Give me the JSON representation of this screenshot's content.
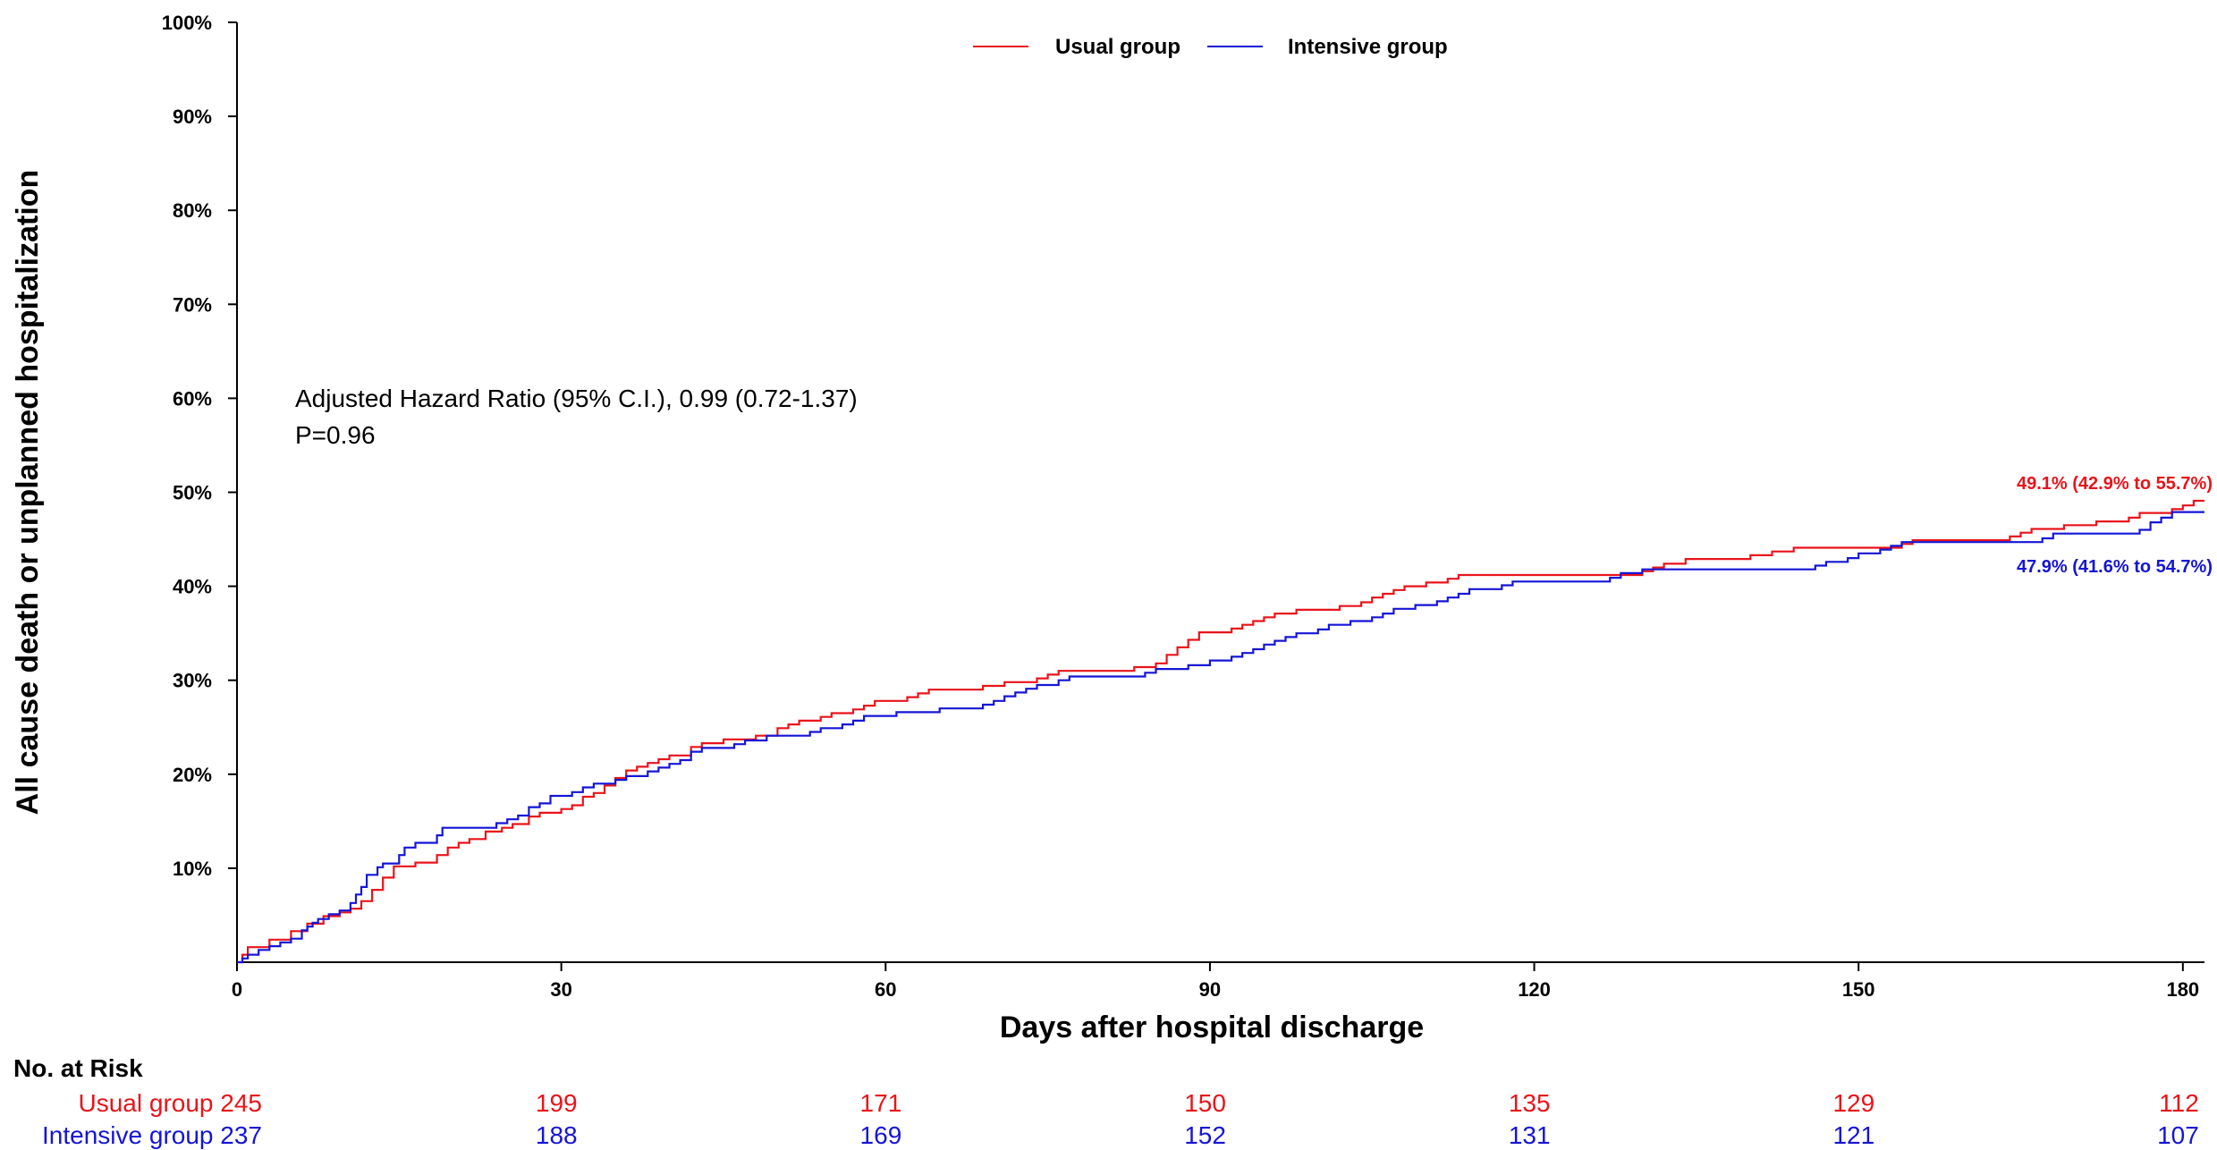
{
  "chart_data": {
    "type": "line",
    "step": true,
    "xlabel": "Days after hospital discharge",
    "ylabel": "All cause death or unplanned hospitalization",
    "xlim": [
      0,
      182
    ],
    "ylim": [
      0,
      100
    ],
    "x_ticks": [
      {
        "value": 0,
        "label": "0"
      },
      {
        "value": 30,
        "label": "30"
      },
      {
        "value": 60,
        "label": "60"
      },
      {
        "value": 90,
        "label": "90"
      },
      {
        "value": 120,
        "label": "120"
      },
      {
        "value": 150,
        "label": "150"
      },
      {
        "value": 180,
        "label": "180"
      }
    ],
    "y_ticks": [
      {
        "value": 10,
        "label": "10%"
      },
      {
        "value": 20,
        "label": "20%"
      },
      {
        "value": 30,
        "label": "30%"
      },
      {
        "value": 40,
        "label": "40%"
      },
      {
        "value": 50,
        "label": "50%"
      },
      {
        "value": 60,
        "label": "60%"
      },
      {
        "value": 70,
        "label": "70%"
      },
      {
        "value": 80,
        "label": "80%"
      },
      {
        "value": 90,
        "label": "90%"
      },
      {
        "value": 100,
        "label": "100%"
      }
    ],
    "legend_position": "top-center",
    "grid": false,
    "annotation": {
      "line1": "Adjusted Hazard Ratio (95% C.I.), 0.99 (0.72-1.37)",
      "line2": "P=0.96"
    },
    "series": [
      {
        "name": "Usual group",
        "color": "#e8141a",
        "end_label": "49.1% (42.9% to 55.7%)",
        "points": [
          [
            0,
            0
          ],
          [
            0.5,
            0.8
          ],
          [
            1,
            1.6
          ],
          [
            3,
            2.4
          ],
          [
            5,
            3.3
          ],
          [
            6.5,
            4.1
          ],
          [
            8,
            4.9
          ],
          [
            9.5,
            5.3
          ],
          [
            10.5,
            5.7
          ],
          [
            11.5,
            6.5
          ],
          [
            12.5,
            7.7
          ],
          [
            13.5,
            9.0
          ],
          [
            14.5,
            10.2
          ],
          [
            16.5,
            10.6
          ],
          [
            18.5,
            11.4
          ],
          [
            19.5,
            12.2
          ],
          [
            20.5,
            12.7
          ],
          [
            21.5,
            13.1
          ],
          [
            23,
            13.9
          ],
          [
            24.5,
            14.3
          ],
          [
            25.5,
            14.7
          ],
          [
            27,
            15.5
          ],
          [
            28,
            15.9
          ],
          [
            30,
            16.3
          ],
          [
            31,
            16.7
          ],
          [
            32,
            17.6
          ],
          [
            33,
            18.0
          ],
          [
            34,
            18.8
          ],
          [
            35,
            19.6
          ],
          [
            36,
            20.4
          ],
          [
            37,
            20.8
          ],
          [
            38,
            21.2
          ],
          [
            39,
            21.6
          ],
          [
            40,
            22.0
          ],
          [
            42,
            22.9
          ],
          [
            43,
            23.3
          ],
          [
            45,
            23.7
          ],
          [
            48,
            24.1
          ],
          [
            50,
            24.9
          ],
          [
            51,
            25.3
          ],
          [
            52,
            25.7
          ],
          [
            54,
            26.1
          ],
          [
            55,
            26.5
          ],
          [
            57,
            26.9
          ],
          [
            58,
            27.3
          ],
          [
            59,
            27.8
          ],
          [
            62,
            28.2
          ],
          [
            63,
            28.6
          ],
          [
            64,
            29.0
          ],
          [
            69,
            29.4
          ],
          [
            71,
            29.8
          ],
          [
            74,
            30.2
          ],
          [
            75,
            30.6
          ],
          [
            76,
            31.0
          ],
          [
            83,
            31.4
          ],
          [
            85,
            31.8
          ],
          [
            86,
            32.7
          ],
          [
            87,
            33.5
          ],
          [
            88,
            34.3
          ],
          [
            89,
            35.1
          ],
          [
            92,
            35.5
          ],
          [
            93,
            35.9
          ],
          [
            94,
            36.3
          ],
          [
            95,
            36.7
          ],
          [
            96,
            37.1
          ],
          [
            98,
            37.5
          ],
          [
            102,
            37.9
          ],
          [
            104,
            38.3
          ],
          [
            105,
            38.8
          ],
          [
            106,
            39.2
          ],
          [
            107,
            39.6
          ],
          [
            108,
            40.0
          ],
          [
            110,
            40.4
          ],
          [
            112,
            40.8
          ],
          [
            113,
            41.2
          ],
          [
            130,
            41.6
          ],
          [
            131,
            42.0
          ],
          [
            132,
            42.4
          ],
          [
            134,
            42.9
          ],
          [
            140,
            43.3
          ],
          [
            142,
            43.7
          ],
          [
            144,
            44.1
          ],
          [
            154,
            44.5
          ],
          [
            155,
            44.9
          ],
          [
            164,
            45.3
          ],
          [
            165,
            45.7
          ],
          [
            166,
            46.1
          ],
          [
            169,
            46.5
          ],
          [
            172,
            46.9
          ],
          [
            175,
            47.3
          ],
          [
            176,
            47.8
          ],
          [
            179,
            48.2
          ],
          [
            180,
            48.6
          ],
          [
            181,
            49.1
          ],
          [
            182,
            49.1
          ]
        ]
      },
      {
        "name": "Intensive group",
        "color": "#1515d6",
        "end_label": "47.9% (41.6% to 54.7%)",
        "points": [
          [
            0,
            0
          ],
          [
            0.5,
            0.4
          ],
          [
            1,
            0.8
          ],
          [
            2,
            1.3
          ],
          [
            3,
            1.7
          ],
          [
            4,
            2.1
          ],
          [
            5,
            2.5
          ],
          [
            6,
            3.4
          ],
          [
            6.5,
            3.8
          ],
          [
            7,
            4.2
          ],
          [
            7.5,
            4.6
          ],
          [
            8.5,
            5.1
          ],
          [
            9.5,
            5.5
          ],
          [
            10.5,
            6.3
          ],
          [
            11,
            7.2
          ],
          [
            11.5,
            8.0
          ],
          [
            12,
            9.3
          ],
          [
            13,
            10.1
          ],
          [
            13.5,
            10.5
          ],
          [
            15,
            11.4
          ],
          [
            15.5,
            12.2
          ],
          [
            16.5,
            12.7
          ],
          [
            18.5,
            13.5
          ],
          [
            19,
            14.3
          ],
          [
            24,
            14.8
          ],
          [
            25,
            15.2
          ],
          [
            26,
            15.6
          ],
          [
            27,
            16.5
          ],
          [
            28,
            16.9
          ],
          [
            29,
            17.7
          ],
          [
            31,
            18.1
          ],
          [
            32,
            18.6
          ],
          [
            33,
            19.0
          ],
          [
            35,
            19.4
          ],
          [
            36,
            19.8
          ],
          [
            38,
            20.3
          ],
          [
            39,
            20.7
          ],
          [
            40,
            21.1
          ],
          [
            41,
            21.5
          ],
          [
            42,
            22.4
          ],
          [
            43,
            22.8
          ],
          [
            46,
            23.2
          ],
          [
            47,
            23.6
          ],
          [
            49,
            24.1
          ],
          [
            53,
            24.5
          ],
          [
            54,
            24.9
          ],
          [
            56,
            25.3
          ],
          [
            57,
            25.7
          ],
          [
            58,
            26.2
          ],
          [
            61,
            26.6
          ],
          [
            65,
            27.0
          ],
          [
            69,
            27.4
          ],
          [
            70,
            27.8
          ],
          [
            71,
            28.3
          ],
          [
            72,
            28.7
          ],
          [
            73,
            29.1
          ],
          [
            74,
            29.5
          ],
          [
            76,
            30.0
          ],
          [
            77,
            30.4
          ],
          [
            84,
            30.8
          ],
          [
            85,
            31.2
          ],
          [
            88,
            31.6
          ],
          [
            90,
            32.1
          ],
          [
            92,
            32.5
          ],
          [
            93,
            32.9
          ],
          [
            94,
            33.3
          ],
          [
            95,
            33.8
          ],
          [
            96,
            34.2
          ],
          [
            97,
            34.6
          ],
          [
            98,
            35.0
          ],
          [
            100,
            35.4
          ],
          [
            101,
            35.9
          ],
          [
            103,
            36.3
          ],
          [
            105,
            36.7
          ],
          [
            106,
            37.1
          ],
          [
            107,
            37.6
          ],
          [
            109,
            38.0
          ],
          [
            111,
            38.4
          ],
          [
            112,
            38.8
          ],
          [
            113,
            39.2
          ],
          [
            114,
            39.7
          ],
          [
            117,
            40.1
          ],
          [
            118,
            40.5
          ],
          [
            127,
            40.9
          ],
          [
            128,
            41.4
          ],
          [
            130,
            41.8
          ],
          [
            146,
            42.2
          ],
          [
            147,
            42.6
          ],
          [
            149,
            43.0
          ],
          [
            150,
            43.5
          ],
          [
            152,
            43.9
          ],
          [
            153,
            44.3
          ],
          [
            154,
            44.7
          ],
          [
            167,
            45.1
          ],
          [
            168,
            45.6
          ],
          [
            176,
            46.0
          ],
          [
            177,
            46.8
          ],
          [
            178,
            47.3
          ],
          [
            179,
            47.9
          ],
          [
            182,
            47.9
          ]
        ]
      }
    ],
    "risk_table": {
      "title": "No. at Risk",
      "timepoints": [
        0,
        30,
        60,
        90,
        120,
        150,
        180
      ],
      "rows": [
        {
          "label": "Usual group",
          "color": "#e8141a",
          "values": [
            "245",
            "199",
            "171",
            "150",
            "135",
            "129",
            "112"
          ]
        },
        {
          "label": "Intensive group",
          "color": "#1515d6",
          "values": [
            "237",
            "188",
            "169",
            "152",
            "131",
            "121",
            "107"
          ]
        }
      ]
    }
  }
}
